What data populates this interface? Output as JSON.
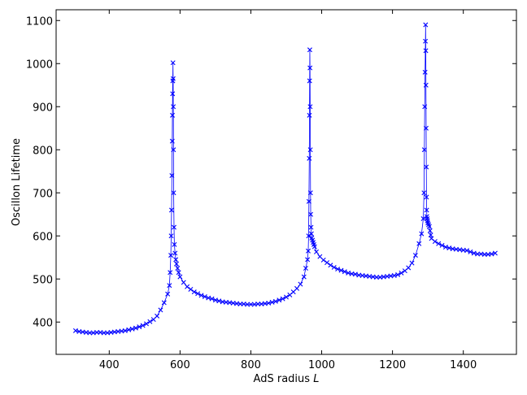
{
  "chart_data": {
    "type": "line",
    "title": "",
    "xlabel": "AdS radius",
    "xlabel_symbol": "L",
    "ylabel": "Oscillon Lifetime",
    "xlim": [
      250,
      1550
    ],
    "ylim": [
      325,
      1125
    ],
    "xticks": [
      400,
      600,
      800,
      1000,
      1200,
      1400
    ],
    "yticks": [
      400,
      500,
      600,
      700,
      800,
      900,
      1000,
      1100
    ],
    "grid": false,
    "legend": "none",
    "marker": "x",
    "color": "#0000ff",
    "series": [
      {
        "x": [
          305,
          315,
          325,
          335,
          345,
          355,
          365,
          375,
          385,
          395,
          405,
          415,
          425,
          435,
          445,
          455,
          465,
          475,
          485,
          495,
          505,
          515,
          525,
          535,
          545,
          555,
          565,
          570,
          572,
          574,
          575,
          576,
          577,
          578,
          578.5,
          579,
          579.5,
          580,
          580.5,
          581,
          581.5,
          582,
          583,
          584,
          586,
          588,
          590,
          593,
          596,
          600,
          610,
          620,
          630,
          640,
          650,
          660,
          670,
          680,
          690,
          700,
          710,
          720,
          730,
          740,
          750,
          760,
          770,
          780,
          790,
          800,
          810,
          820,
          830,
          840,
          850,
          860,
          870,
          880,
          890,
          900,
          910,
          920,
          930,
          940,
          950,
          955,
          960,
          962,
          963,
          964,
          965,
          965.5,
          966,
          966.5,
          967,
          967.5,
          968,
          968.5,
          969,
          970,
          971,
          972,
          974,
          976,
          978,
          980,
          985,
          995,
          1005,
          1015,
          1025,
          1035,
          1045,
          1055,
          1065,
          1075,
          1085,
          1095,
          1105,
          1115,
          1125,
          1135,
          1145,
          1155,
          1165,
          1175,
          1185,
          1195,
          1205,
          1215,
          1225,
          1235,
          1245,
          1255,
          1265,
          1275,
          1282,
          1287,
          1289,
          1290,
          1291,
          1292,
          1293,
          1293.5,
          1294,
          1294.5,
          1295,
          1295.5,
          1296,
          1296.5,
          1297,
          1298,
          1299,
          1300,
          1302,
          1304,
          1306,
          1308,
          1310,
          1320,
          1330,
          1340,
          1350,
          1360,
          1370,
          1380,
          1390,
          1400,
          1410,
          1420,
          1430,
          1440,
          1450,
          1460,
          1470,
          1480,
          1490
        ],
        "y": [
          380,
          378,
          377,
          376,
          375,
          375,
          376,
          376,
          375,
          375,
          376,
          377,
          378,
          379,
          380,
          382,
          384,
          386,
          389,
          392,
          396,
          401,
          406,
          414,
          428,
          445,
          465,
          485,
          515,
          555,
          600,
          660,
          740,
          820,
          880,
          930,
          960,
          1002,
          965,
          900,
          800,
          700,
          620,
          580,
          560,
          545,
          535,
          525,
          515,
          505,
          492,
          482,
          476,
          470,
          466,
          462,
          459,
          456,
          454,
          451,
          449,
          447,
          446,
          445,
          444,
          443,
          442,
          442,
          441,
          441,
          441,
          442,
          442,
          443,
          444,
          446,
          448,
          451,
          454,
          458,
          463,
          470,
          478,
          488,
          505,
          525,
          545,
          565,
          600,
          680,
          780,
          880,
          960,
          1032,
          990,
          900,
          800,
          700,
          650,
          620,
          605,
          595,
          590,
          585,
          580,
          575,
          563,
          552,
          544,
          538,
          532,
          527,
          523,
          520,
          517,
          514,
          512,
          511,
          509,
          508,
          507,
          506,
          505,
          504,
          504,
          505,
          506,
          507,
          508,
          510,
          514,
          519,
          526,
          537,
          555,
          582,
          605,
          640,
          700,
          800,
          900,
          980,
          1052,
          1090,
          1030,
          950,
          850,
          760,
          690,
          660,
          645,
          640,
          635,
          630,
          626,
          622,
          612,
          602,
          594,
          587,
          582,
          578,
          574,
          572,
          570,
          569,
          568,
          567,
          566,
          563,
          560,
          558,
          558,
          557,
          557,
          558,
          560
        ]
      }
    ]
  }
}
